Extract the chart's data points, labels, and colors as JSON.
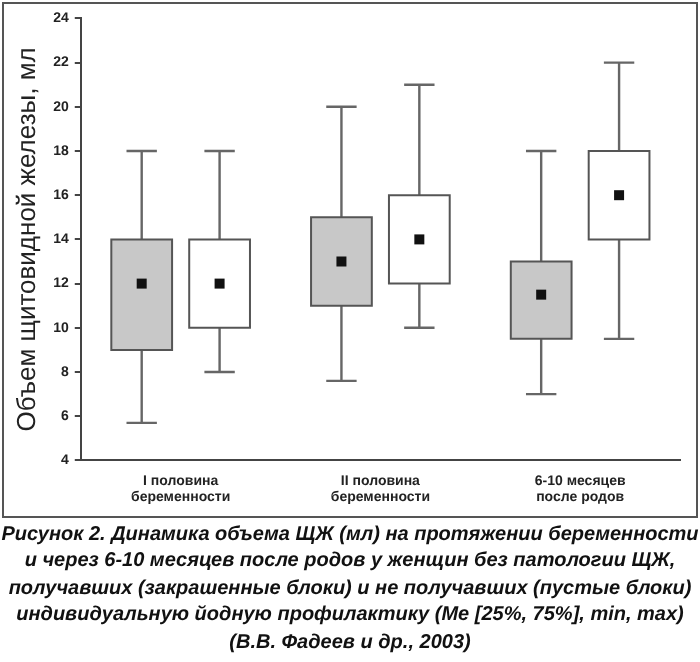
{
  "chart_data": {
    "type": "box",
    "ylabel": "Объем щитовидной железы, мл",
    "categories": [
      "I половина\nбеременности",
      "II половина\nбеременности",
      "6-10 месяцев\nпосле родов"
    ],
    "series": [
      {
        "color": "#c8c8c8",
        "boxes": [
          {
            "low": 5.7,
            "q1": 9,
            "median": 12,
            "q3": 14,
            "high": 18
          },
          {
            "low": 7.6,
            "q1": 11,
            "median": 13,
            "q3": 15,
            "high": 20
          },
          {
            "low": 7,
            "q1": 9.5,
            "median": 11.5,
            "q3": 13,
            "high": 18
          }
        ]
      },
      {
        "color": "#ffffff",
        "boxes": [
          {
            "low": 8,
            "q1": 10,
            "median": 12,
            "q3": 14,
            "high": 18
          },
          {
            "low": 10,
            "q1": 12,
            "median": 14,
            "q3": 16,
            "high": 21
          },
          {
            "low": 9.5,
            "q1": 14,
            "median": 16,
            "q3": 18,
            "high": 22
          }
        ]
      }
    ],
    "ylim": [
      4,
      24
    ],
    "yticks": [
      4,
      6,
      8,
      10,
      12,
      14,
      16,
      18,
      20,
      22,
      24
    ],
    "grid": false,
    "legend": false,
    "marker": "square",
    "annotations": [
      "Рисунок 2. Динамика объема ЩЖ (мл) на протяжении беременности и через 6-10 месяцев после родов у женщин без патологии ЩЖ, получавших (закрашенные блоки) и не получавших (пустые блоки) индивидуальную йодную профилактику (Me [25%, 75%], min, max) (В.В. Фадеев и др., 2003)"
    ]
  }
}
